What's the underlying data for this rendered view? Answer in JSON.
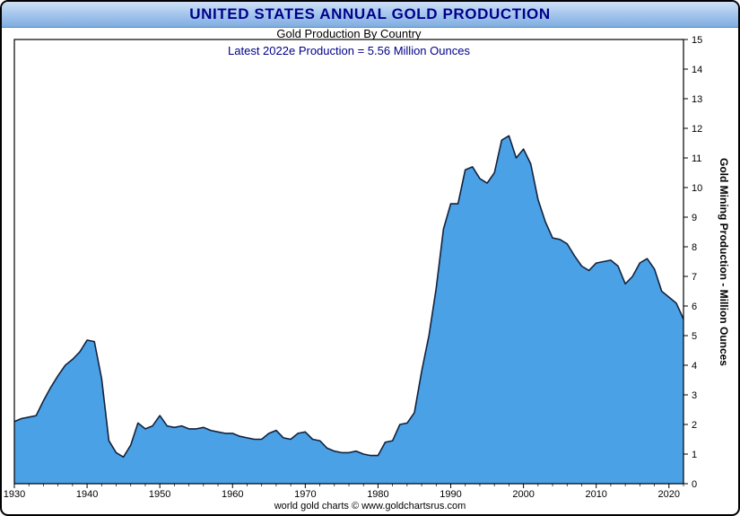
{
  "page": {
    "header_title": "UNITED STATES ANNUAL GOLD PRODUCTION",
    "footer": "world gold charts © www.goldchartsrus.com"
  },
  "colors": {
    "header_text": "#00008B",
    "subtitle_text": "#00008B",
    "header_gradient_top": "#CFE1F6",
    "header_gradient_bottom": "#7FADE0",
    "area_fill": "#4AA1E6",
    "area_stroke": "#13223C"
  },
  "chart_data": {
    "type": "area",
    "title": "Gold Production By Country",
    "subtitle": "Latest 2022e Production = 5.56 Million Ounces",
    "latest_year": "2022e",
    "latest_production_moz": 5.56,
    "ylabel_right": "Gold Mining Production - Million Ounces",
    "x_range": [
      1930,
      2022
    ],
    "ylim": [
      0,
      15
    ],
    "grid": false,
    "legend": "none",
    "x_ticks": [
      1930,
      1940,
      1950,
      1960,
      1970,
      1980,
      1990,
      2000,
      2010,
      2020
    ],
    "y_ticks": [
      0,
      1,
      2,
      3,
      4,
      5,
      6,
      7,
      8,
      9,
      10,
      11,
      12,
      13,
      14,
      15
    ],
    "area_fill": "#4AA1E6",
    "area_stroke": "#13223C",
    "years": [
      1930,
      1931,
      1932,
      1933,
      1934,
      1935,
      1936,
      1937,
      1938,
      1939,
      1940,
      1941,
      1942,
      1943,
      1944,
      1945,
      1946,
      1947,
      1948,
      1949,
      1950,
      1951,
      1952,
      1953,
      1954,
      1955,
      1956,
      1957,
      1958,
      1959,
      1960,
      1961,
      1962,
      1963,
      1964,
      1965,
      1966,
      1967,
      1968,
      1969,
      1970,
      1971,
      1972,
      1973,
      1974,
      1975,
      1976,
      1977,
      1978,
      1979,
      1980,
      1981,
      1982,
      1983,
      1984,
      1985,
      1986,
      1987,
      1988,
      1989,
      1990,
      1991,
      1992,
      1993,
      1994,
      1995,
      1996,
      1997,
      1998,
      1999,
      2000,
      2001,
      2002,
      2003,
      2004,
      2005,
      2006,
      2007,
      2008,
      2009,
      2010,
      2011,
      2012,
      2013,
      2014,
      2015,
      2016,
      2017,
      2018,
      2019,
      2020,
      2021,
      2022
    ],
    "values": [
      2.1,
      2.2,
      2.25,
      2.3,
      2.8,
      3.25,
      3.65,
      4.0,
      4.2,
      4.45,
      4.85,
      4.8,
      3.55,
      1.45,
      1.05,
      0.9,
      1.3,
      2.05,
      1.85,
      1.95,
      2.3,
      1.95,
      1.9,
      1.95,
      1.85,
      1.85,
      1.9,
      1.8,
      1.75,
      1.7,
      1.7,
      1.6,
      1.55,
      1.5,
      1.5,
      1.7,
      1.8,
      1.55,
      1.5,
      1.7,
      1.75,
      1.5,
      1.45,
      1.2,
      1.1,
      1.05,
      1.05,
      1.1,
      1.0,
      0.95,
      0.95,
      1.4,
      1.45,
      2.0,
      2.05,
      2.4,
      3.8,
      5.0,
      6.6,
      8.6,
      9.45,
      9.45,
      10.6,
      10.7,
      10.3,
      10.15,
      10.5,
      11.6,
      11.75,
      11.0,
      11.3,
      10.8,
      9.6,
      8.85,
      8.3,
      8.25,
      8.1,
      7.7,
      7.35,
      7.2,
      7.45,
      7.5,
      7.55,
      7.35,
      6.75,
      7.0,
      7.45,
      7.6,
      7.25,
      6.5,
      6.3,
      6.1,
      5.56
    ]
  }
}
